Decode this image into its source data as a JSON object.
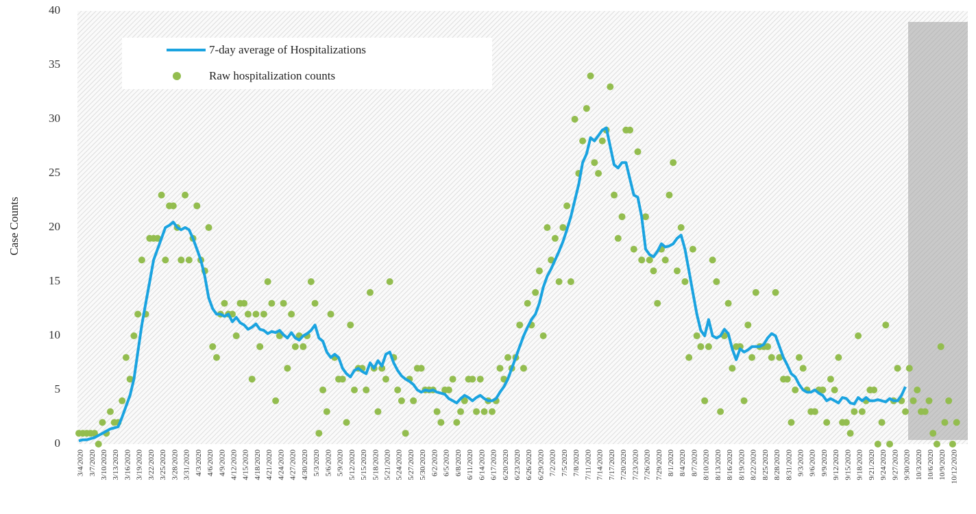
{
  "chart_data": {
    "type": "line",
    "y_label": "Case Counts",
    "categories": [
      "3/4/2020",
      null,
      null,
      "3/7/2020",
      null,
      null,
      "3/10/2020",
      null,
      null,
      "3/13/2020",
      null,
      null,
      "3/16/2020",
      null,
      null,
      "3/19/2020",
      null,
      null,
      "3/22/2020",
      null,
      null,
      "3/25/2020",
      null,
      null,
      "3/28/2020",
      null,
      null,
      "3/31/2020",
      null,
      null,
      "4/3/2020",
      null,
      null,
      "4/6/2020",
      null,
      null,
      "4/9/2020",
      null,
      null,
      "4/12/2020",
      null,
      null,
      "4/15/2020",
      null,
      null,
      "4/18/2020",
      null,
      null,
      "4/21/2020",
      null,
      null,
      "4/24/2020",
      null,
      null,
      "4/27/2020",
      null,
      null,
      "4/30/2020",
      null,
      null,
      "5/3/2020",
      null,
      null,
      "5/6/2020",
      null,
      null,
      "5/9/2020",
      null,
      null,
      "5/12/2020",
      null,
      null,
      "5/15/2020",
      null,
      null,
      "5/18/2020",
      null,
      null,
      "5/21/2020",
      null,
      null,
      "5/24/2020",
      null,
      null,
      "5/27/2020",
      null,
      null,
      "5/30/2020",
      null,
      null,
      "6/2/2020",
      null,
      null,
      "6/5/2020",
      null,
      null,
      "6/8/2020",
      null,
      null,
      "6/11/2020",
      null,
      null,
      "6/14/2020",
      null,
      null,
      "6/17/2020",
      null,
      null,
      "6/20/2020",
      null,
      null,
      "6/23/2020",
      null,
      null,
      "6/26/2020",
      null,
      null,
      "6/29/2020",
      null,
      null,
      "7/2/2020",
      null,
      null,
      "7/5/2020",
      null,
      null,
      "7/8/2020",
      null,
      null,
      "7/11/2020",
      null,
      null,
      "7/14/2020",
      null,
      null,
      "7/17/2020",
      null,
      null,
      "7/20/2020",
      null,
      null,
      "7/23/2020",
      null,
      null,
      "7/26/2020",
      null,
      null,
      "7/29/2020",
      null,
      null,
      "8/1/2020",
      null,
      null,
      "8/4/2020",
      null,
      null,
      "8/7/2020",
      null,
      null,
      "8/10/2020",
      null,
      null,
      "8/13/2020",
      null,
      null,
      "8/16/2020",
      null,
      null,
      "8/19/2020",
      null,
      null,
      "8/22/2020",
      null,
      null,
      "8/25/2020",
      null,
      null,
      "8/28/2020",
      null,
      null,
      "8/31/2020",
      null,
      null,
      "9/3/2020",
      null,
      null,
      "9/6/2020",
      null,
      null,
      "9/9/2020",
      null,
      null,
      "9/12/2020",
      null,
      null,
      "9/15/2020",
      null,
      null,
      "9/18/2020",
      null,
      null,
      "9/21/2020",
      null,
      null,
      "9/24/2020",
      null,
      null,
      "9/27/2020",
      null,
      null,
      "9/30/2020",
      null,
      null,
      "10/3/2020",
      null,
      null,
      "10/6/2020",
      null,
      null,
      "10/9/2020",
      null,
      null,
      "10/12/2020",
      null
    ],
    "series": [
      {
        "name": "7-day average of Hospitalizations",
        "type": "line",
        "color": "#1aa3e0",
        "values": [
          0.3,
          0.4,
          0.4,
          0.5,
          0.6,
          0.8,
          1.0,
          1.2,
          1.4,
          1.5,
          1.6,
          2.5,
          3.5,
          4.5,
          6,
          8.5,
          11,
          13,
          15,
          17,
          18,
          19,
          20,
          20.2,
          20.5,
          20,
          19.8,
          20,
          19.8,
          19,
          18,
          17,
          15.5,
          13.5,
          12.5,
          12,
          12,
          11.8,
          12,
          11.3,
          11.7,
          11.2,
          11,
          10.6,
          10.8,
          11.1,
          10.6,
          10.5,
          10.2,
          10.4,
          10.3,
          10.5,
          10.1,
          9.8,
          10.3,
          9.8,
          9.6,
          10,
          10.2,
          10.5,
          11,
          9.8,
          9.5,
          8.5,
          8,
          8.3,
          8,
          7,
          6.5,
          6.2,
          6.8,
          7,
          6.7,
          6.5,
          7.5,
          7,
          7.7,
          7.2,
          8.3,
          8.5,
          7.5,
          6.8,
          6.3,
          6,
          5.8,
          5.5,
          5,
          4.8,
          5,
          4.9,
          5,
          4.8,
          4.7,
          4.6,
          4.2,
          4,
          3.8,
          4.2,
          4.5,
          4.3,
          4,
          4.3,
          4.5,
          4.2,
          4,
          4,
          4.2,
          4.8,
          5.3,
          6,
          7,
          8,
          9,
          10,
          10.8,
          11.5,
          12,
          13,
          14.5,
          15.5,
          16.2,
          17,
          17.8,
          18.7,
          19.8,
          21,
          22.5,
          24,
          26,
          26.8,
          28.3,
          28,
          28.5,
          29,
          29.2,
          27.5,
          25.8,
          25.5,
          26,
          26,
          24.5,
          23,
          22.8,
          21,
          18,
          17.5,
          17.3,
          17.8,
          18.5,
          18.2,
          18.3,
          18.5,
          19,
          19.3,
          18,
          16,
          14,
          12,
          10.5,
          10,
          11.5,
          10,
          9.8,
          10,
          10.6,
          10.2,
          8.8,
          7.8,
          8.8,
          8.5,
          8.7,
          9,
          9,
          9,
          9.2,
          9.8,
          10.2,
          10,
          9,
          8,
          7.3,
          6.5,
          6.2,
          5.5,
          5,
          4.8,
          4.8,
          5,
          4.7,
          4.5,
          4,
          4.2,
          4,
          3.8,
          4.3,
          4.2,
          3.8,
          3.7,
          4.3,
          4,
          4.3,
          4,
          4,
          4.1,
          4,
          3.9,
          4.2,
          4,
          4,
          4.5,
          5.3,
          null,
          null,
          null,
          null,
          null,
          null,
          null,
          null,
          null,
          null,
          null,
          null,
          null
        ]
      },
      {
        "name": "Raw hospitalization counts",
        "type": "scatter",
        "color": "#93bd4f",
        "values": [
          1,
          1,
          1,
          1,
          1,
          0,
          2,
          1,
          3,
          2,
          2,
          4,
          8,
          6,
          10,
          12,
          17,
          12,
          19,
          19,
          19,
          23,
          17,
          22,
          22,
          20,
          17,
          23,
          17,
          19,
          22,
          17,
          16,
          20,
          9,
          8,
          12,
          13,
          12,
          12,
          10,
          13,
          13,
          12,
          6,
          12,
          9,
          12,
          15,
          13,
          4,
          10,
          13,
          7,
          12,
          9,
          10,
          9,
          10,
          15,
          13,
          1,
          5,
          3,
          12,
          8,
          6,
          6,
          2,
          11,
          5,
          7,
          7,
          5,
          14,
          7,
          3,
          7,
          6,
          15,
          8,
          5,
          4,
          1,
          6,
          4,
          7,
          7,
          5,
          5,
          5,
          3,
          2,
          5,
          5,
          6,
          2,
          3,
          4,
          6,
          6,
          3,
          6,
          3,
          4,
          3,
          4,
          7,
          6,
          8,
          7,
          8,
          11,
          7,
          13,
          11,
          14,
          16,
          10,
          20,
          17,
          19,
          15,
          20,
          22,
          15,
          30,
          25,
          28,
          31,
          34,
          26,
          25,
          28,
          29,
          33,
          23,
          19,
          21,
          29,
          29,
          18,
          27,
          17,
          21,
          17,
          16,
          13,
          18,
          17,
          23,
          26,
          16,
          20,
          15,
          8,
          18,
          10,
          9,
          4,
          9,
          17,
          15,
          3,
          10,
          13,
          7,
          9,
          9,
          4,
          11,
          8,
          14,
          9,
          9,
          9,
          8,
          14,
          8,
          6,
          6,
          2,
          5,
          8,
          7,
          5,
          3,
          3,
          5,
          5,
          2,
          6,
          5,
          8,
          2,
          2,
          1,
          3,
          10,
          3,
          4,
          5,
          5,
          0,
          2,
          11,
          0,
          4,
          7,
          4,
          3,
          7,
          4,
          5,
          3,
          3,
          4,
          1,
          0,
          9,
          2,
          4,
          0,
          2
        ]
      }
    ],
    "ylim": [
      0,
      40
    ],
    "yticks": [
      0,
      5,
      10,
      15,
      20,
      25,
      30,
      35,
      40
    ],
    "grid": false
  }
}
